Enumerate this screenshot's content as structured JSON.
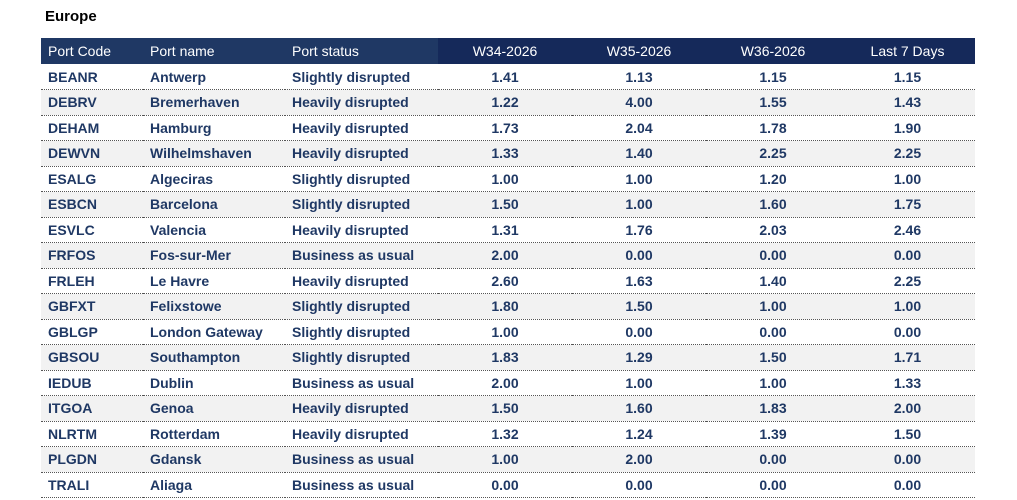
{
  "title": "Europe",
  "columns": [
    "Port Code",
    "Port name",
    "Port status",
    "W34-2026",
    "W35-2026",
    "W36-2026",
    "Last 7 Days"
  ],
  "rows": [
    [
      "BEANR",
      "Antwerp",
      "Slightly disrupted",
      "1.41",
      "1.13",
      "1.15",
      "1.15"
    ],
    [
      "DEBRV",
      "Bremerhaven",
      "Heavily disrupted",
      "1.22",
      "4.00",
      "1.55",
      "1.43"
    ],
    [
      "DEHAM",
      "Hamburg",
      "Heavily disrupted",
      "1.73",
      "2.04",
      "1.78",
      "1.90"
    ],
    [
      "DEWVN",
      "Wilhelmshaven",
      "Heavily disrupted",
      "1.33",
      "1.40",
      "2.25",
      "2.25"
    ],
    [
      "ESALG",
      "Algeciras",
      "Slightly disrupted",
      "1.00",
      "1.00",
      "1.20",
      "1.00"
    ],
    [
      "ESBCN",
      "Barcelona",
      "Slightly disrupted",
      "1.50",
      "1.00",
      "1.60",
      "1.75"
    ],
    [
      "ESVLC",
      "Valencia",
      "Heavily disrupted",
      "1.31",
      "1.76",
      "2.03",
      "2.46"
    ],
    [
      "FRFOS",
      "Fos-sur-Mer",
      "Business as usual",
      "2.00",
      "0.00",
      "0.00",
      "0.00"
    ],
    [
      "FRLEH",
      "Le Havre",
      "Heavily disrupted",
      "2.60",
      "1.63",
      "1.40",
      "2.25"
    ],
    [
      "GBFXT",
      "Felixstowe",
      "Slightly disrupted",
      "1.80",
      "1.50",
      "1.00",
      "1.00"
    ],
    [
      "GBLGP",
      "London Gateway",
      "Slightly disrupted",
      "1.00",
      "0.00",
      "0.00",
      "0.00"
    ],
    [
      "GBSOU",
      "Southampton",
      "Slightly disrupted",
      "1.83",
      "1.29",
      "1.50",
      "1.71"
    ],
    [
      "IEDUB",
      "Dublin",
      "Business as usual",
      "2.00",
      "1.00",
      "1.00",
      "1.33"
    ],
    [
      "ITGOA",
      "Genoa",
      "Heavily disrupted",
      "1.50",
      "1.60",
      "1.83",
      "2.00"
    ],
    [
      "NLRTM",
      "Rotterdam",
      "Heavily disrupted",
      "1.32",
      "1.24",
      "1.39",
      "1.50"
    ],
    [
      "PLGDN",
      "Gdansk",
      "Business as usual",
      "1.00",
      "2.00",
      "0.00",
      "0.00"
    ],
    [
      "TRALI",
      "Aliaga",
      "Business as usual",
      "0.00",
      "0.00",
      "0.00",
      "0.00"
    ]
  ],
  "colors": {
    "header_bg": "#1f3864",
    "header_num_bg": "#15295a",
    "text": "#1f3864",
    "alt_row": "#f2f2f2"
  }
}
